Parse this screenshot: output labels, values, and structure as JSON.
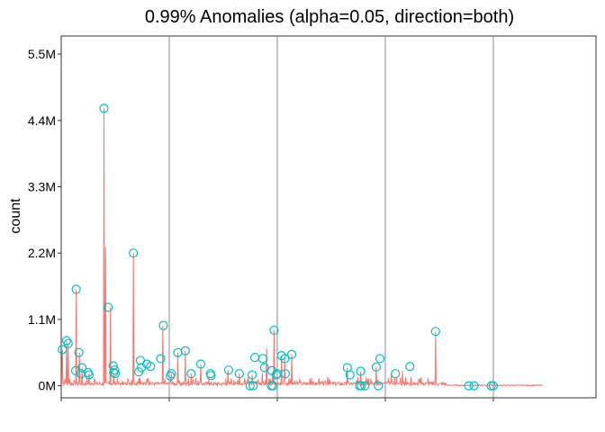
{
  "chart_data": {
    "type": "line",
    "title": "0.99% Anomalies (alpha=0.05, direction=both)",
    "ylabel": "count",
    "xlabel": "",
    "ylim": [
      -200000,
      5800000
    ],
    "xlim": [
      0,
      1000
    ],
    "y_ticks": [
      {
        "value": 0,
        "label": "0M"
      },
      {
        "value": 1100000,
        "label": "1.1M"
      },
      {
        "value": 2200000,
        "label": "2.2M"
      },
      {
        "value": 3300000,
        "label": "3.3M"
      },
      {
        "value": 4400000,
        "label": "4.4M"
      },
      {
        "value": 5500000,
        "label": "5.5M"
      }
    ],
    "x_ticks": [
      0,
      202,
      404,
      606,
      808
    ],
    "x_tick_labels_visible": false,
    "grid": "vertical major lines only",
    "series": [
      {
        "color": "#F8766D",
        "points": [
          [
            2,
            600000
          ],
          [
            10,
            750000
          ],
          [
            13,
            700000
          ],
          [
            28,
            1600000
          ],
          [
            34,
            550000
          ],
          [
            39,
            300000
          ],
          [
            52,
            200000
          ],
          [
            80,
            4600000
          ],
          [
            83,
            2300000
          ],
          [
            92,
            1300000
          ],
          [
            98,
            200000
          ],
          [
            135,
            2200000
          ],
          [
            190,
            1000000
          ],
          [
            206,
            200000
          ],
          [
            218,
            550000
          ],
          [
            232,
            580000
          ],
          [
            243,
            200000
          ],
          [
            261,
            360000
          ],
          [
            312,
            260000
          ],
          [
            333,
            200000
          ],
          [
            357,
            180000
          ],
          [
            376,
            210000
          ],
          [
            384,
            620000
          ],
          [
            398,
            920000
          ],
          [
            412,
            500000
          ],
          [
            418,
            450000
          ],
          [
            431,
            520000
          ],
          [
            535,
            300000
          ],
          [
            560,
            240000
          ],
          [
            589,
            310000
          ],
          [
            617,
            200000
          ],
          [
            638,
            250000
          ],
          [
            700,
            900000
          ],
          [
            790,
            10000
          ]
        ]
      }
    ],
    "anomalies": {
      "color": "#00BFC4",
      "points": [
        [
          2,
          600000
        ],
        [
          10,
          750000
        ],
        [
          13,
          700000
        ],
        [
          28,
          1600000
        ],
        [
          27,
          250000
        ],
        [
          33,
          550000
        ],
        [
          37,
          200000
        ],
        [
          39,
          300000
        ],
        [
          50,
          220000
        ],
        [
          52,
          180000
        ],
        [
          80,
          4600000
        ],
        [
          88,
          1300000
        ],
        [
          97,
          330000
        ],
        [
          98,
          220000
        ],
        [
          100,
          260000
        ],
        [
          101,
          200000
        ],
        [
          135,
          2200000
        ],
        [
          145,
          230000
        ],
        [
          148,
          420000
        ],
        [
          150,
          300000
        ],
        [
          160,
          360000
        ],
        [
          167,
          320000
        ],
        [
          186,
          450000
        ],
        [
          191,
          1000000
        ],
        [
          204,
          160000
        ],
        [
          206,
          200000
        ],
        [
          218,
          550000
        ],
        [
          232,
          580000
        ],
        [
          243,
          200000
        ],
        [
          261,
          360000
        ],
        [
          279,
          200000
        ],
        [
          280,
          170000
        ],
        [
          313,
          260000
        ],
        [
          333,
          200000
        ],
        [
          353,
          0
        ],
        [
          357,
          180000
        ],
        [
          359,
          0
        ],
        [
          362,
          470000
        ],
        [
          377,
          450000
        ],
        [
          380,
          300000
        ],
        [
          393,
          0
        ],
        [
          394,
          250000
        ],
        [
          396,
          0
        ],
        [
          398,
          920000
        ],
        [
          402,
          180000
        ],
        [
          404,
          200000
        ],
        [
          412,
          500000
        ],
        [
          418,
          450000
        ],
        [
          419,
          200000
        ],
        [
          431,
          520000
        ],
        [
          535,
          300000
        ],
        [
          540,
          180000
        ],
        [
          558,
          0
        ],
        [
          560,
          240000
        ],
        [
          561,
          0
        ],
        [
          568,
          0
        ],
        [
          589,
          310000
        ],
        [
          596,
          450000
        ],
        [
          593,
          0
        ],
        [
          625,
          200000
        ],
        [
          652,
          320000
        ],
        [
          700,
          900000
        ],
        [
          762,
          0
        ],
        [
          772,
          0
        ],
        [
          804,
          0
        ],
        [
          808,
          0
        ]
      ]
    }
  }
}
